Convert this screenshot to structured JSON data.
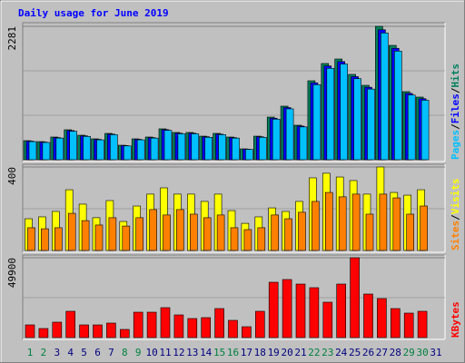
{
  "chart_data": [
    {
      "type": "bar",
      "title": "Daily usage for June 2019",
      "title_color": "#0000ff",
      "ylim": [
        0,
        2281
      ],
      "yticks": [
        2281
      ],
      "series": [
        {
          "name": "Hits",
          "color": "#00805c",
          "values": [
            326,
            310,
            388,
            512,
            419,
            357,
            450,
            248,
            357,
            388,
            528,
            466,
            466,
            403,
            450,
            388,
            186,
            403,
            729,
            916,
            590,
            1350,
            1645,
            1722,
            1459,
            1272,
            2281,
            1955,
            1164,
            1071,
            0
          ]
        },
        {
          "name": "Files",
          "color": "#0000ff",
          "values": [
            318,
            302,
            378,
            499,
            408,
            348,
            438,
            242,
            348,
            378,
            514,
            454,
            454,
            393,
            438,
            378,
            181,
            393,
            710,
            892,
            575,
            1315,
            1603,
            1678,
            1421,
            1239,
            2222,
            1905,
            1134,
            1043,
            0
          ]
        },
        {
          "name": "Pages",
          "color": "#00c0ff",
          "values": [
            310,
            295,
            370,
            487,
            398,
            340,
            428,
            236,
            340,
            370,
            502,
            443,
            443,
            383,
            428,
            370,
            177,
            383,
            693,
            870,
            561,
            1283,
            1563,
            1636,
            1386,
            1208,
            2167,
            1857,
            1106,
            1017,
            0
          ]
        }
      ],
      "legend_separator": "/"
    },
    {
      "type": "bar",
      "ylim": [
        0,
        400
      ],
      "yticks": [
        400
      ],
      "series": [
        {
          "name": "Visits",
          "color": "#ffff00",
          "values": [
            152,
            161,
            187,
            291,
            222,
            157,
            239,
            139,
            213,
            270,
            300,
            270,
            270,
            235,
            270,
            191,
            130,
            161,
            204,
            187,
            235,
            348,
            370,
            352,
            335,
            270,
            400,
            278,
            265,
            291,
            0
          ]
        },
        {
          "name": "Sites",
          "color": "#ff8000",
          "values": [
            109,
            104,
            109,
            178,
            143,
            122,
            157,
            117,
            157,
            196,
            170,
            196,
            174,
            157,
            170,
            109,
            100,
            109,
            170,
            152,
            183,
            235,
            278,
            257,
            270,
            174,
            270,
            252,
            174,
            213,
            0
          ]
        }
      ],
      "legend_separator": "/"
    },
    {
      "type": "bar",
      "ylim": [
        0,
        49900
      ],
      "yticks": [
        49900
      ],
      "categories": [
        "1",
        "2",
        "3",
        "4",
        "5",
        "6",
        "7",
        "8",
        "9",
        "10",
        "11",
        "12",
        "13",
        "14",
        "15",
        "16",
        "17",
        "18",
        "19",
        "20",
        "21",
        "22",
        "23",
        "24",
        "25",
        "26",
        "27",
        "28",
        "29",
        "30",
        "31"
      ],
      "category_colors": [
        "#008040",
        "#008040",
        "#000080",
        "#000080",
        "#000080",
        "#000080",
        "#000080",
        "#008040",
        "#008040",
        "#000080",
        "#000080",
        "#000080",
        "#000080",
        "#000080",
        "#008040",
        "#008040",
        "#000080",
        "#000080",
        "#000080",
        "#000080",
        "#000080",
        "#008040",
        "#008040",
        "#000080",
        "#000080",
        "#000080",
        "#000080",
        "#000080",
        "#008040",
        "#008040",
        "#000080"
      ],
      "series": [
        {
          "name": "KBytes",
          "color": "#ff0000",
          "values": [
            7939,
            5670,
            9640,
            16444,
            7939,
            7939,
            9073,
            5103,
            15877,
            15877,
            18712,
            14176,
            11908,
            12475,
            18145,
            10774,
            6805,
            16444,
            34590,
            36291,
            33456,
            31188,
            22115,
            33456,
            49900,
            27218,
            24383,
            18145,
            15310,
            16444,
            0
          ]
        }
      ]
    }
  ]
}
